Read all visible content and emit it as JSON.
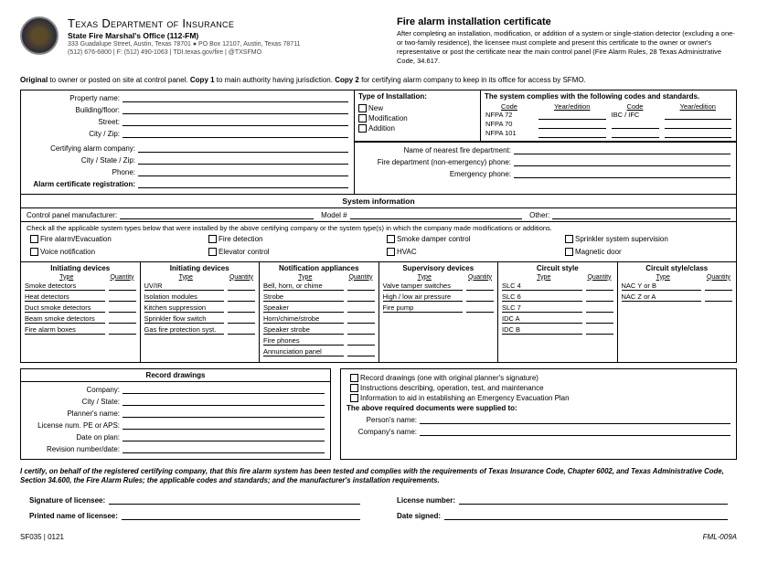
{
  "header": {
    "dept": "Texas Department of Insurance",
    "office": "State Fire Marshal's Office (112-FM)",
    "addr1": "333 Guadalupe Street, Austin, Texas 78701 ● PO Box 12107, Austin, Texas 78711",
    "addr2": "(512) 676-6800 | F: (512) 490-1063 | TDI.texas.gov/fire | @TXSFMO",
    "title": "Fire alarm installation certificate",
    "blurb": "After completing an installation, modification, or addition of a system or single-station detector (excluding a one- or two-family residence), the licensee must complete and present this certificate to the owner or owner's representative or post the certificate near the main control panel (Fire Alarm Rules, 28 Texas Administrative Code, 34.617."
  },
  "copies": {
    "o": "Original",
    "o_txt": " to owner or posted on site at control panel.  ",
    "c1": "Copy 1",
    "c1_txt": " to main authority having jurisdiction.  ",
    "c2": "Copy 2",
    "c2_txt": " for certifying alarm company to keep in its office for access by SFMO."
  },
  "left": {
    "prop": "Property name:",
    "bldg": "Building/floor:",
    "street": "Street:",
    "cityzip": "City / Zip:",
    "cert_co": "Certifying alarm company:",
    "csz": "City / State / Zip:",
    "phone": "Phone:",
    "alarm_reg": "Alarm certificate registration:"
  },
  "install": {
    "hdr": "Type of Installation:",
    "opts": [
      "New",
      "Modification",
      "Addition"
    ]
  },
  "comply": {
    "hdr": "The system complies with the following codes and standards.",
    "col_code": "Code",
    "col_year": "Year/edition",
    "labels": [
      "NFPA 72",
      "NFPA 70",
      "NFPA 101"
    ],
    "right_label": "IBC / IFC"
  },
  "fire": {
    "near": "Name of nearest fire department:",
    "noner": "Fire department (non-emergency) phone:",
    "emer": "Emergency phone:"
  },
  "sys": {
    "hdr": "System information",
    "cpm": "Control panel manufacturer:",
    "model": "Model #",
    "other": "Other:",
    "note": "Check all the applicable system types below that were installed by the above certifying company or the system type(s) in which the company made modifications or additions.",
    "cks": [
      "Fire alarm/Evacuation",
      "Fire detection",
      "Smoke damper control",
      "Sprinkler system supervision",
      "Voice notification",
      "Elevator control",
      "HVAC",
      "Magnetic door"
    ]
  },
  "devcols": [
    {
      "h": "Initiating devices",
      "sub": [
        "Type",
        "Quantity"
      ],
      "rows": [
        "Smoke detectors",
        "Heat detectors",
        "Duct smoke detectors",
        "Beam smoke detectors",
        "Fire alarm boxes"
      ]
    },
    {
      "h": "Initiating devices",
      "sub": [
        "Type",
        "Quantity"
      ],
      "rows": [
        "UV/IR",
        "Isolation modules",
        "Kitchen suppression",
        "Sprinkler flow switch",
        "Gas fire protection syst."
      ]
    },
    {
      "h": "Notification appliances",
      "sub": [
        "Type",
        "Quantity"
      ],
      "rows": [
        "Bell, horn, or chime",
        "Strobe",
        "Speaker",
        "Horn/chime/strobe",
        "Speaker strobe",
        "Fire phones",
        "Annunciation panel"
      ]
    },
    {
      "h": "Supervisory devices",
      "sub": [
        "Type",
        "Quantity"
      ],
      "rows": [
        "Valve tamper switches",
        "High / low air pressure",
        "Fire pump"
      ]
    },
    {
      "h": "Circuit style",
      "sub": [
        "Type",
        "Quantity"
      ],
      "rows": [
        "SLC 4",
        "SLC 6",
        "SLC 7",
        "IDC A",
        "IDC B"
      ]
    },
    {
      "h": "Circuit style/class",
      "sub": [
        "Type",
        "Quantity"
      ],
      "rows": [
        "NAC Y or B",
        "NAC Z or A"
      ]
    }
  ],
  "record": {
    "hdr": "Record drawings",
    "fields": [
      "Company:",
      "City / State:",
      "Planner's name:",
      "License num. PE or APS:",
      "Date on plan:",
      "Revision number/date:"
    ]
  },
  "supply": {
    "cks": [
      "Record drawings (one with original planner's signature)",
      "Instructions describing, operation, test, and maintenance",
      "Information to aid in establishing an Emergency Evacuation Plan"
    ],
    "hdr": "The above required documents were supplied to:",
    "fields": [
      "Person's name:",
      "Company's name:"
    ]
  },
  "certify": "I certify, on behalf of the registered certifying company, that this fire alarm system has been tested and complies with the requirements of Texas Insurance Code, Chapter 6002, and Texas Administrative Code, Section 34.600, the Fire Alarm Rules; the applicable codes and standards; and the manufacturer's installation requirements.",
  "sig": {
    "sol": "Signature of licensee:",
    "lic": "License number:",
    "pnl": "Printed name of licensee:",
    "date": "Date signed:"
  },
  "footer": {
    "left": "SF035 | 0121",
    "right": "FML-009A"
  },
  "colors": {
    "text": "#000000",
    "bg": "#ffffff",
    "border": "#000000"
  }
}
